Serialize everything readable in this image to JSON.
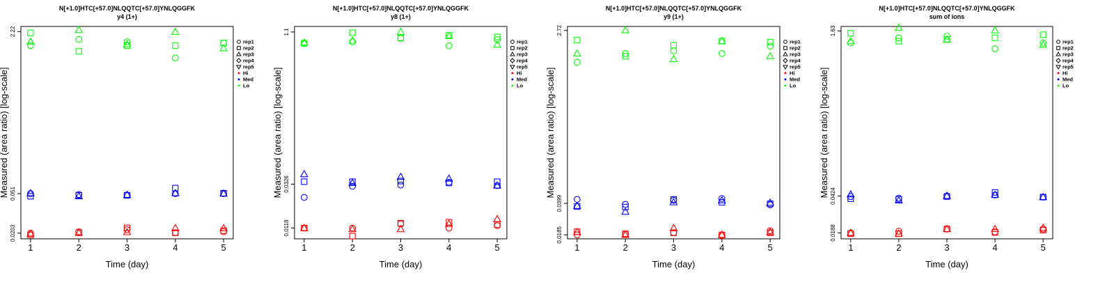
{
  "colors": {
    "Hi": "#ff0000",
    "Med": "#0000ff",
    "Lo": "#00ff00"
  },
  "legend": [
    {
      "label": "rep1",
      "kind": "shape",
      "shape": "circle"
    },
    {
      "label": "rep2",
      "kind": "shape",
      "shape": "square"
    },
    {
      "label": "rep3",
      "kind": "shape",
      "shape": "triangle"
    },
    {
      "label": "rep4",
      "kind": "shape",
      "shape": "diamond"
    },
    {
      "label": "rep5",
      "kind": "shape",
      "shape": "triangle-down"
    },
    {
      "label": "Hi",
      "kind": "color",
      "color": "#ff0000"
    },
    {
      "label": "Med",
      "kind": "color",
      "color": "#0000ff"
    },
    {
      "label": "Lo",
      "kind": "color",
      "color": "#00ff00"
    }
  ],
  "chart_data": [
    {
      "type": "scatter",
      "title": "N[+1.0]HTC[+57.0]NLQQTC[+57.0]YNLQGGFK",
      "subtitle": "y4 (1+)",
      "xlabel": "Time (day)",
      "ylabel": "Measured (area ratio) [log-scale]",
      "log_y": true,
      "x_ticks": [
        1,
        2,
        3,
        4,
        5
      ],
      "y_ticks": [
        0.0203,
        0.051,
        2.22
      ],
      "y_tick_labels": [
        "0.0203",
        "0.051",
        "2.22"
      ],
      "ylim": [
        0.0178,
        2.5
      ],
      "series": [
        {
          "level": "Hi",
          "rep": "rep1",
          "x": [
            1,
            2,
            3,
            4,
            5
          ],
          "y": [
            0.0203,
            0.021,
            0.022,
            0.0205,
            0.021
          ]
        },
        {
          "level": "Hi",
          "rep": "rep2",
          "x": [
            1,
            2,
            3,
            4,
            5
          ],
          "y": [
            0.0195,
            0.0205,
            0.023,
            0.0205,
            0.0215
          ]
        },
        {
          "level": "Hi",
          "rep": "rep3",
          "x": [
            1,
            2,
            3,
            4,
            5
          ],
          "y": [
            0.02,
            0.0205,
            0.0208,
            0.0228,
            0.0228
          ]
        },
        {
          "level": "Med",
          "rep": "rep1",
          "x": [
            1,
            2,
            3,
            4,
            5
          ],
          "y": [
            0.051,
            0.05,
            0.0495,
            0.051,
            0.051
          ]
        },
        {
          "level": "Med",
          "rep": "rep2",
          "x": [
            1,
            2,
            3,
            4,
            5
          ],
          "y": [
            0.048,
            0.049,
            0.049,
            0.058,
            0.0515
          ]
        },
        {
          "level": "Med",
          "rep": "rep3",
          "x": [
            1,
            2,
            3,
            4,
            5
          ],
          "y": [
            0.0515,
            0.048,
            0.0495,
            0.0515,
            0.051
          ]
        },
        {
          "level": "Lo",
          "rep": "rep1",
          "x": [
            1,
            2,
            3,
            4,
            5
          ],
          "y": [
            1.6,
            1.85,
            1.75,
            1.2,
            1.7
          ]
        },
        {
          "level": "Lo",
          "rep": "rep2",
          "x": [
            1,
            2,
            3,
            4,
            5
          ],
          "y": [
            2.15,
            1.4,
            1.6,
            1.6,
            1.7
          ]
        },
        {
          "level": "Lo",
          "rep": "rep3",
          "x": [
            1,
            2,
            3,
            4,
            5
          ],
          "y": [
            1.75,
            2.3,
            1.65,
            2.2,
            1.5
          ]
        }
      ]
    },
    {
      "type": "scatter",
      "title": "N[+1.0]HTC[+57.0]NLQQTC[+57.0]YNLQGGFK",
      "subtitle": "y8 (1+)",
      "xlabel": "Time (day)",
      "ylabel": "Measured (area ratio) [log-scale]",
      "log_y": true,
      "x_ticks": [
        1,
        2,
        3,
        4,
        5
      ],
      "y_ticks": [
        0.0118,
        0.0326,
        1.1
      ],
      "y_tick_labels": [
        "0.0118",
        "0.0326",
        "1.1"
      ],
      "ylim": [
        0.0092,
        1.25
      ],
      "series": [
        {
          "level": "Hi",
          "rep": "rep1",
          "x": [
            1,
            2,
            3,
            4,
            5
          ],
          "y": [
            0.0118,
            0.0118,
            0.013,
            0.0118,
            0.0125
          ]
        },
        {
          "level": "Hi",
          "rep": "rep2",
          "x": [
            1,
            2,
            3,
            4,
            5
          ],
          "y": [
            0.0118,
            0.0098,
            0.0132,
            0.0135,
            0.0128
          ]
        },
        {
          "level": "Hi",
          "rep": "rep3",
          "x": [
            1,
            2,
            3,
            4,
            5
          ],
          "y": [
            0.0118,
            0.0115,
            0.0115,
            0.013,
            0.0145
          ]
        },
        {
          "level": "Med",
          "rep": "rep1",
          "x": [
            1,
            2,
            3,
            4,
            5
          ],
          "y": [
            0.024,
            0.031,
            0.032,
            0.034,
            0.0315
          ]
        },
        {
          "level": "Med",
          "rep": "rep2",
          "x": [
            1,
            2,
            3,
            4,
            5
          ],
          "y": [
            0.0345,
            0.0345,
            0.035,
            0.0335,
            0.0345
          ]
        },
        {
          "level": "Med",
          "rep": "rep3",
          "x": [
            1,
            2,
            3,
            4,
            5
          ],
          "y": [
            0.041,
            0.0335,
            0.0385,
            0.037,
            0.0315
          ]
        },
        {
          "level": "Lo",
          "rep": "rep1",
          "x": [
            1,
            2,
            3,
            4,
            5
          ],
          "y": [
            0.84,
            0.875,
            0.95,
            0.8,
            0.92
          ]
        },
        {
          "level": "Lo",
          "rep": "rep2",
          "x": [
            1,
            2,
            3,
            4,
            5
          ],
          "y": [
            0.85,
            1.08,
            0.96,
            1.02,
            0.98
          ]
        },
        {
          "level": "Lo",
          "rep": "rep3",
          "x": [
            1,
            2,
            3,
            4,
            5
          ],
          "y": [
            0.86,
            0.9,
            1.1,
            1.0,
            0.82
          ]
        }
      ]
    },
    {
      "type": "scatter",
      "title": "N[+1.0]HTC[+57.0]NLQQTC[+57.0]YNLQGGFK",
      "subtitle": "y9 (1+)",
      "xlabel": "Time (day)",
      "ylabel": "Measured (area ratio) [log-scale]",
      "log_y": true,
      "x_ticks": [
        1,
        2,
        3,
        4,
        5
      ],
      "y_ticks": [
        0.0185,
        0.0399,
        2.72
      ],
      "y_tick_labels": [
        "0.0185",
        "0.0399",
        "2.72"
      ],
      "ylim": [
        0.0168,
        3.0
      ],
      "series": [
        {
          "level": "Hi",
          "rep": "rep1",
          "x": [
            1,
            2,
            3,
            4,
            5
          ],
          "y": [
            0.0185,
            0.0188,
            0.0195,
            0.0182,
            0.0205
          ]
        },
        {
          "level": "Hi",
          "rep": "rep2",
          "x": [
            1,
            2,
            3,
            4,
            5
          ],
          "y": [
            0.02,
            0.019,
            0.0195,
            0.0185,
            0.0195
          ]
        },
        {
          "level": "Hi",
          "rep": "rep3",
          "x": [
            1,
            2,
            3,
            4,
            5
          ],
          "y": [
            0.0198,
            0.0185,
            0.0218,
            0.0185,
            0.0198
          ]
        },
        {
          "level": "Med",
          "rep": "rep1",
          "x": [
            1,
            2,
            3,
            4,
            5
          ],
          "y": [
            0.044,
            0.039,
            0.043,
            0.045,
            0.0385
          ]
        },
        {
          "level": "Med",
          "rep": "rep2",
          "x": [
            1,
            2,
            3,
            4,
            5
          ],
          "y": [
            0.037,
            0.0365,
            0.044,
            0.041,
            0.0395
          ]
        },
        {
          "level": "Med",
          "rep": "rep3",
          "x": [
            1,
            2,
            3,
            4,
            5
          ],
          "y": [
            0.0375,
            0.0325,
            0.041,
            0.043,
            0.0405
          ]
        },
        {
          "level": "Lo",
          "rep": "rep1",
          "x": [
            1,
            2,
            3,
            4,
            5
          ],
          "y": [
            1.25,
            1.55,
            1.65,
            1.55,
            1.85
          ]
        },
        {
          "level": "Lo",
          "rep": "rep2",
          "x": [
            1,
            2,
            3,
            4,
            5
          ],
          "y": [
            2.15,
            1.45,
            1.9,
            2.1,
            2.05
          ]
        },
        {
          "level": "Lo",
          "rep": "rep3",
          "x": [
            1,
            2,
            3,
            4,
            5
          ],
          "y": [
            1.55,
            2.72,
            1.35,
            2.1,
            1.45
          ]
        }
      ]
    },
    {
      "type": "scatter",
      "title": "N[+1.0]HTC[+57.0]NLQQTC[+57.0]YNLQGGFK",
      "subtitle": "sum of ions",
      "xlabel": "Time (day)",
      "ylabel": "Measured (area ratio) [log-scale]",
      "log_y": true,
      "x_ticks": [
        1,
        2,
        3,
        4,
        5
      ],
      "y_ticks": [
        0.0188,
        0.0424,
        1.63
      ],
      "y_tick_labels": [
        "0.0188",
        "0.0424",
        "1.63"
      ],
      "ylim": [
        0.0165,
        1.8
      ],
      "series": [
        {
          "level": "Hi",
          "rep": "rep1",
          "x": [
            1,
            2,
            3,
            4,
            5
          ],
          "y": [
            0.0188,
            0.0195,
            0.0205,
            0.0192,
            0.0205
          ]
        },
        {
          "level": "Hi",
          "rep": "rep2",
          "x": [
            1,
            2,
            3,
            4,
            5
          ],
          "y": [
            0.0185,
            0.0185,
            0.0205,
            0.019,
            0.02
          ]
        },
        {
          "level": "Hi",
          "rep": "rep3",
          "x": [
            1,
            2,
            3,
            4,
            5
          ],
          "y": [
            0.0188,
            0.0185,
            0.0205,
            0.0205,
            0.021
          ]
        },
        {
          "level": "Med",
          "rep": "rep1",
          "x": [
            1,
            2,
            3,
            4,
            5
          ],
          "y": [
            0.042,
            0.0405,
            0.0425,
            0.0435,
            0.0415
          ]
        },
        {
          "level": "Med",
          "rep": "rep2",
          "x": [
            1,
            2,
            3,
            4,
            5
          ],
          "y": [
            0.04,
            0.0395,
            0.042,
            0.046,
            0.0415
          ]
        },
        {
          "level": "Med",
          "rep": "rep3",
          "x": [
            1,
            2,
            3,
            4,
            5
          ],
          "y": [
            0.044,
            0.0385,
            0.0425,
            0.0435,
            0.0415
          ]
        },
        {
          "level": "Lo",
          "rep": "rep1",
          "x": [
            1,
            2,
            3,
            4,
            5
          ],
          "y": [
            1.25,
            1.4,
            1.45,
            1.1,
            1.25
          ]
        },
        {
          "level": "Lo",
          "rep": "rep2",
          "x": [
            1,
            2,
            3,
            4,
            5
          ],
          "y": [
            1.55,
            1.3,
            1.35,
            1.4,
            1.5
          ]
        },
        {
          "level": "Lo",
          "rep": "rep3",
          "x": [
            1,
            2,
            3,
            4,
            5
          ],
          "y": [
            1.3,
            1.75,
            1.35,
            1.65,
            1.2
          ]
        }
      ]
    }
  ]
}
